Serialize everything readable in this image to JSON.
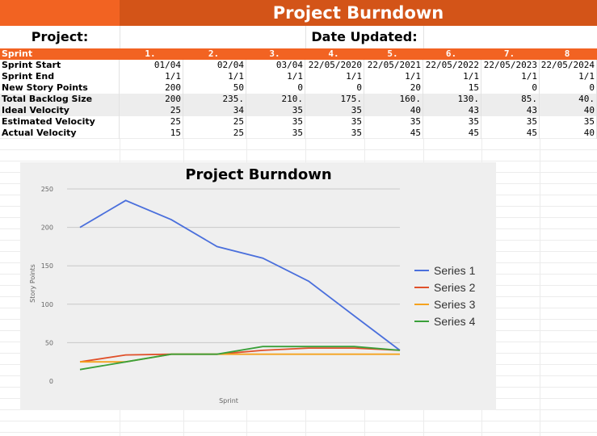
{
  "header": {
    "title": "Project Burndown",
    "project_label": "Project:",
    "date_label": "Date Updated:"
  },
  "table": {
    "columns": [
      "Sprint",
      "1.",
      "2.",
      "3.",
      "4.",
      "5.",
      "6.",
      "7.",
      "8"
    ],
    "rows": [
      {
        "label": "Sprint Start",
        "shaded": false,
        "cells": [
          "01/04",
          "02/04",
          "03/04",
          "22/05/2020",
          "22/05/2021",
          "22/05/2022",
          "22/05/2023",
          "22/05/2024"
        ]
      },
      {
        "label": "Sprint End",
        "shaded": false,
        "cells": [
          "1/1",
          "1/1",
          "1/1",
          "1/1",
          "1/1",
          "1/1",
          "1/1",
          "1/1"
        ]
      },
      {
        "label": "New Story Points",
        "shaded": false,
        "cells": [
          "200",
          "50",
          "0",
          "0",
          "20",
          "15",
          "0",
          "0"
        ]
      },
      {
        "label": "Total Backlog Size",
        "shaded": true,
        "cells": [
          "200",
          "235.",
          "210.",
          "175.",
          "160.",
          "130.",
          "85.",
          "40."
        ]
      },
      {
        "label": "Ideal Velocity",
        "shaded": true,
        "cells": [
          "25",
          "34",
          "35",
          "35",
          "40",
          "43",
          "43",
          "40"
        ]
      },
      {
        "label": "Estimated Velocity",
        "shaded": false,
        "cells": [
          "25",
          "25",
          "35",
          "35",
          "35",
          "35",
          "35",
          "35"
        ]
      },
      {
        "label": "Actual Velocity",
        "shaded": false,
        "cells": [
          "15",
          "25",
          "35",
          "35",
          "45",
          "45",
          "45",
          "40"
        ]
      }
    ]
  },
  "colors": {
    "title_bar": "#d35418",
    "title_left": "#f26322",
    "header_row": "#f26322",
    "chart_bg": "#efefef"
  },
  "chart_data": {
    "type": "line",
    "title": "Project Burndown",
    "xlabel": "Sprint",
    "ylabel": "Story Points",
    "x": [
      1,
      2,
      3,
      4,
      5,
      6,
      7,
      8
    ],
    "ylim": [
      0,
      250
    ],
    "yticks": [
      0,
      50,
      100,
      150,
      200,
      250
    ],
    "grid": true,
    "legend": "right",
    "series": [
      {
        "name": "Series 1",
        "color": "#4a6fdc",
        "values": [
          200,
          235,
          210,
          175,
          160,
          130,
          85,
          40
        ]
      },
      {
        "name": "Series 2",
        "color": "#e0502a",
        "values": [
          25,
          34,
          35,
          35,
          40,
          43,
          43,
          40
        ]
      },
      {
        "name": "Series 3",
        "color": "#f5a21e",
        "values": [
          25,
          25,
          35,
          35,
          35,
          35,
          35,
          35
        ]
      },
      {
        "name": "Series 4",
        "color": "#3aa03a",
        "values": [
          15,
          25,
          35,
          35,
          45,
          45,
          45,
          40
        ]
      }
    ]
  }
}
